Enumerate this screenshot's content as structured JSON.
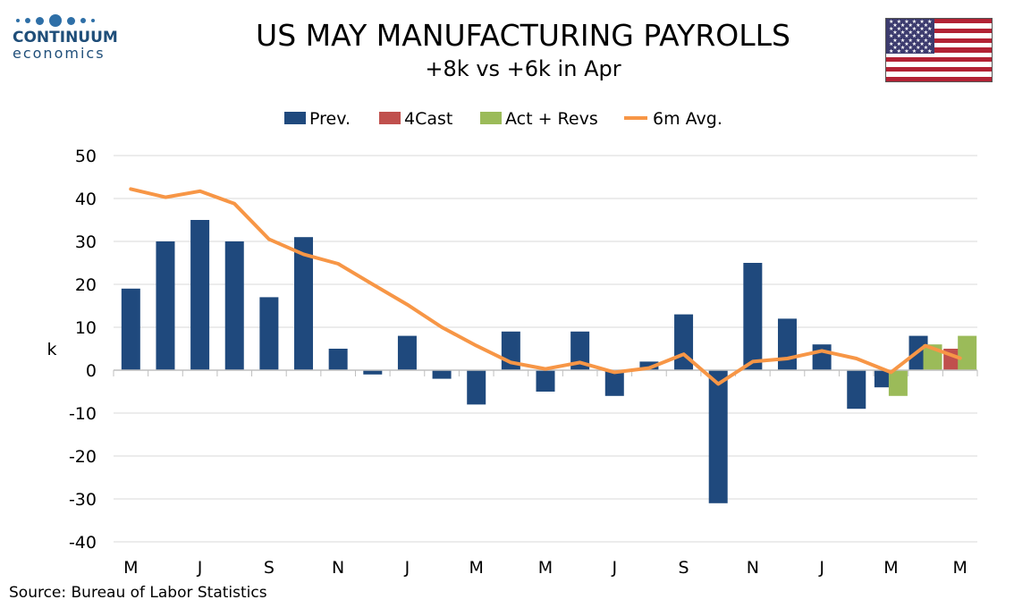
{
  "brand": {
    "name": "CONTINUUM",
    "sub": "economics"
  },
  "source": "Source: Bureau of Labor Statistics",
  "colors": {
    "prev": "#1f497d",
    "forecast": "#c0504d",
    "actual": "#9bbb59",
    "avg": "#f79646",
    "grid": "#d9d9d9",
    "axis": "#bfbfbf"
  },
  "icons": {
    "flag": "us-flag-icon",
    "logo": "continuum-logo-icon"
  },
  "chart_data": {
    "type": "bar",
    "title": "US MAY MANUFACTURING PAYROLLS",
    "subtitle": "+8k vs +6k in Apr",
    "ylabel": "k",
    "xlabel": "",
    "ylim": [
      -40,
      50
    ],
    "yticks": [
      50,
      40,
      30,
      20,
      10,
      0,
      -10,
      -20,
      -30,
      -40
    ],
    "x_tick_labels": [
      "M",
      "J",
      "S",
      "N",
      "J",
      "M",
      "M",
      "J",
      "S",
      "N",
      "J",
      "M",
      "M"
    ],
    "grid": true,
    "legend_position": "top-center",
    "legend": [
      "Prev.",
      "4Cast",
      "Act + Revs",
      "6m Avg."
    ],
    "series": [
      {
        "name": "Prev.",
        "kind": "bar",
        "values": [
          19,
          30,
          35,
          30,
          17,
          31,
          5,
          -1,
          8,
          -2,
          -8,
          9,
          -5,
          9,
          -6,
          2,
          13,
          -31,
          25,
          12,
          6,
          -9,
          -4,
          8,
          null
        ]
      },
      {
        "name": "4Cast",
        "kind": "bar",
        "values": [
          null,
          null,
          null,
          null,
          null,
          null,
          null,
          null,
          null,
          null,
          null,
          null,
          null,
          null,
          null,
          null,
          null,
          null,
          null,
          null,
          null,
          null,
          null,
          null,
          5
        ]
      },
      {
        "name": "Act + Revs",
        "kind": "bar",
        "values": [
          null,
          null,
          null,
          null,
          null,
          null,
          null,
          null,
          null,
          null,
          null,
          null,
          null,
          null,
          null,
          null,
          null,
          null,
          null,
          null,
          null,
          null,
          -6,
          6,
          8
        ]
      },
      {
        "name": "6m Avg.",
        "kind": "line",
        "values": [
          42.2,
          40.3,
          41.7,
          38.8,
          30.5,
          27,
          24.8,
          20,
          15.3,
          10,
          5.7,
          1.8,
          0.3,
          1.8,
          -0.5,
          0.5,
          3.7,
          -3.2,
          2,
          2.7,
          4.5,
          2.7,
          -0.5,
          5.7,
          2.8
        ]
      }
    ]
  }
}
